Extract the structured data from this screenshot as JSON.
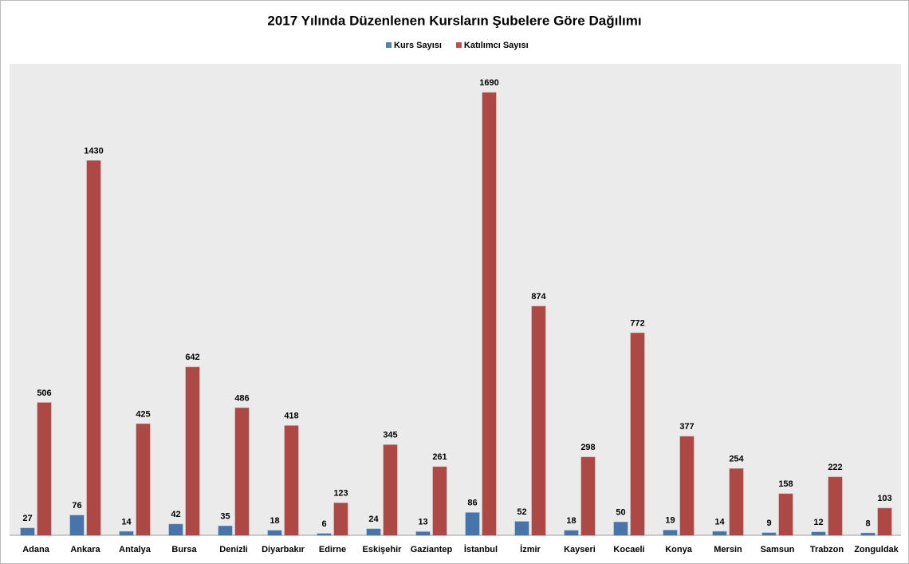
{
  "chart_data": {
    "type": "bar",
    "title": "2017 Yılında Düzenlenen Kursların Şubelere Göre Dağılımı",
    "categories": [
      "Adana",
      "Ankara",
      "Antalya",
      "Bursa",
      "Denizli",
      "Diyarbakır",
      "Edirne",
      "Eskişehir",
      "Gaziantep",
      "İstanbul",
      "İzmir",
      "Kayseri",
      "Kocaeli",
      "Konya",
      "Mersin",
      "Samsun",
      "Trabzon",
      "Zonguldak"
    ],
    "series": [
      {
        "name": "Kurs Sayısı",
        "color": "#4f81bd",
        "values": [
          27,
          76,
          14,
          42,
          35,
          18,
          6,
          24,
          13,
          86,
          52,
          18,
          50,
          19,
          14,
          9,
          12,
          8
        ]
      },
      {
        "name": "Katılımcı Sayısı",
        "color": "#c0504d",
        "values": [
          506,
          1430,
          425,
          642,
          486,
          418,
          123,
          345,
          261,
          1690,
          874,
          298,
          772,
          377,
          254,
          158,
          222,
          103
        ]
      }
    ],
    "ylim": [
      0,
      1800
    ],
    "legend": "top"
  }
}
